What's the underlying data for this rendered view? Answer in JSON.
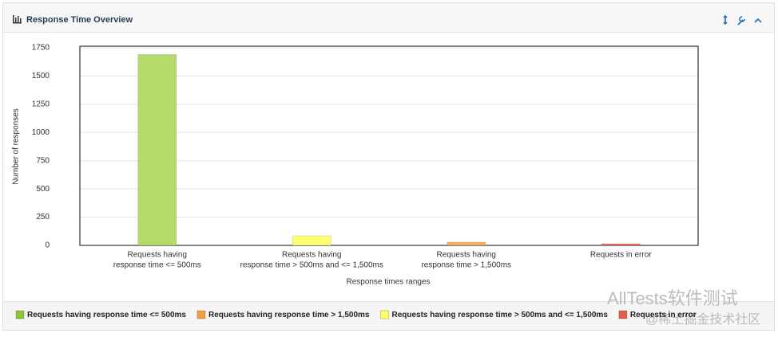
{
  "panel_title": "Response Time Overview",
  "chart_data": {
    "type": "bar",
    "categories": [
      [
        "Requests having",
        "response time <= 500ms"
      ],
      [
        "Requests having",
        "response time > 500ms and <= 1,500ms"
      ],
      [
        "Requests having",
        "response time > 1,500ms"
      ],
      [
        "Requests in error"
      ]
    ],
    "values": [
      1690,
      85,
      28,
      14
    ],
    "colors": [
      "#b5d96b",
      "#ffff73",
      "#f5b25a",
      "#e8735f"
    ],
    "ylim": [
      0,
      1750
    ],
    "yticks": [
      0,
      250,
      500,
      750,
      1000,
      1250,
      1500,
      1750
    ],
    "grid": true,
    "y_label": "Number of responses",
    "x_label": "Response times ranges",
    "legend": [
      {
        "name": "Requests having response time <= 500ms",
        "color": "#8fc43f"
      },
      {
        "name": "Requests having response time > 1,500ms",
        "color": "#f0a040"
      },
      {
        "name": "Requests having response time > 500ms and <= 1,500ms",
        "color": "#ffff66"
      },
      {
        "name": "Requests in error",
        "color": "#e0604a"
      }
    ]
  },
  "watermark": {
    "line1": "AllTests软件测试",
    "line2": "@稀土掘金技术社区"
  }
}
